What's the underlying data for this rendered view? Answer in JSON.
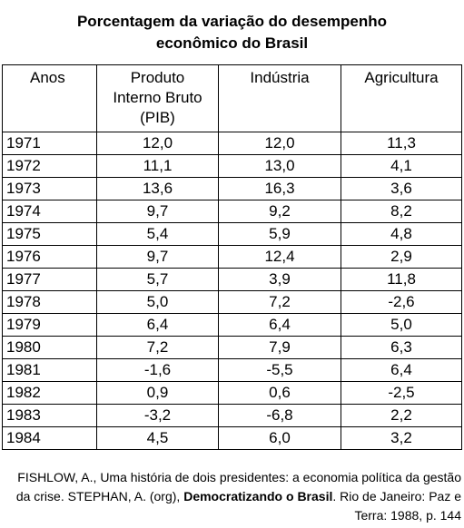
{
  "title": {
    "line1": "Porcentagem da variação do desempenho",
    "line2": "econômico do Brasil"
  },
  "table": {
    "headers": {
      "year": "Anos",
      "pib_line1": "Produto",
      "pib_line2": "Interno Bruto",
      "pib_line3": "(PIB)",
      "industry": "Indústria",
      "agriculture": "Agricultura"
    },
    "rows": [
      {
        "year": "1971",
        "pib": "12,0",
        "industry": "12,0",
        "agriculture": "11,3"
      },
      {
        "year": "1972",
        "pib": "11,1",
        "industry": "13,0",
        "agriculture": "4,1"
      },
      {
        "year": "1973",
        "pib": "13,6",
        "industry": "16,3",
        "agriculture": "3,6"
      },
      {
        "year": "1974",
        "pib": "9,7",
        "industry": "9,2",
        "agriculture": "8,2"
      },
      {
        "year": "1975",
        "pib": "5,4",
        "industry": "5,9",
        "agriculture": "4,8"
      },
      {
        "year": "1976",
        "pib": "9,7",
        "industry": "12,4",
        "agriculture": "2,9"
      },
      {
        "year": "1977",
        "pib": "5,7",
        "industry": "3,9",
        "agriculture": "11,8"
      },
      {
        "year": "1978",
        "pib": "5,0",
        "industry": "7,2",
        "agriculture": "-2,6"
      },
      {
        "year": "1979",
        "pib": "6,4",
        "industry": "6,4",
        "agriculture": "5,0"
      },
      {
        "year": "1980",
        "pib": "7,2",
        "industry": "7,9",
        "agriculture": "6,3"
      },
      {
        "year": "1981",
        "pib": "-1,6",
        "industry": "-5,5",
        "agriculture": "6,4"
      },
      {
        "year": "1982",
        "pib": "0,9",
        "industry": "0,6",
        "agriculture": "-2,5"
      },
      {
        "year": "1983",
        "pib": "-3,2",
        "industry": "-6,8",
        "agriculture": "2,2"
      },
      {
        "year": "1984",
        "pib": "4,5",
        "industry": "6,0",
        "agriculture": "3,2"
      }
    ]
  },
  "source": {
    "line1": "FISHLOW, A., Uma história de dois presidentes: a economia política da gestão",
    "line2_prefix": "da crise. STEPHAN, A. (org), ",
    "line2_bold": "Democratizando o Brasil",
    "line2_suffix": ". Rio de Janeiro: Paz e",
    "line3": "Terra: 1988, p. 144"
  }
}
